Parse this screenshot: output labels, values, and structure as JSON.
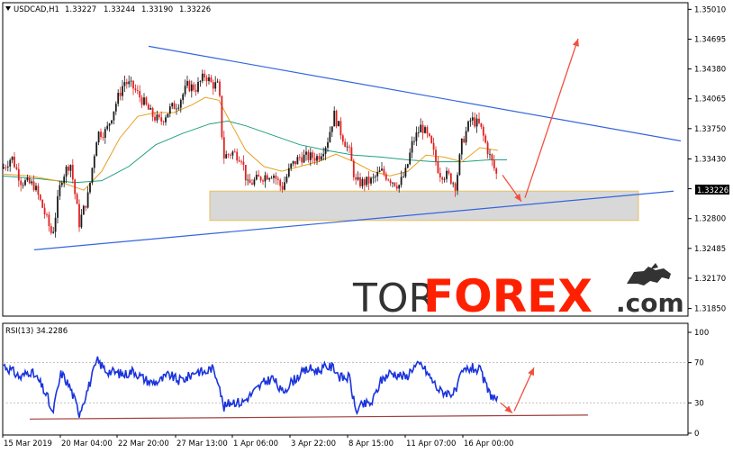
{
  "chart_data": [
    {
      "type": "candlestick",
      "symbol_label": "USDCAD,H1",
      "ohlc_readout": [
        "1.33227",
        "1.33244",
        "1.33190",
        "1.33226"
      ],
      "current_price_label": "1.33226",
      "y_tick_labels": [
        "1.35010",
        "1.34695",
        "1.34380",
        "1.34065",
        "1.33750",
        "1.33430",
        "1.33115",
        "1.32800",
        "1.32485",
        "1.32170",
        "1.31850"
      ],
      "x_tick_labels": [
        "15 Mar 2019",
        "20 Mar 04:00",
        "22 Mar 20:00",
        "27 Mar 13:00",
        "1 Apr 06:00",
        "3 Apr 22:00",
        "8 Apr 15:00",
        "11 Apr 07:00",
        "16 Apr 00:00"
      ],
      "ylim": [
        1.3177,
        1.3508
      ],
      "price_path": [
        [
          0,
          1.3333
        ],
        [
          10,
          1.3345
        ],
        [
          20,
          1.332
        ],
        [
          35,
          1.3315
        ],
        [
          45,
          1.329
        ],
        [
          55,
          1.3262
        ],
        [
          65,
          1.3322
        ],
        [
          75,
          1.334
        ],
        [
          85,
          1.3275
        ],
        [
          95,
          1.3305
        ],
        [
          105,
          1.337
        ],
        [
          115,
          1.3372
        ],
        [
          125,
          1.34
        ],
        [
          135,
          1.3425
        ],
        [
          145,
          1.3418
        ],
        [
          155,
          1.3405
        ],
        [
          165,
          1.339
        ],
        [
          175,
          1.3382
        ],
        [
          185,
          1.3395
        ],
        [
          195,
          1.3402
        ],
        [
          205,
          1.342
        ],
        [
          215,
          1.3418
        ],
        [
          225,
          1.3432
        ],
        [
          232,
          1.3422
        ],
        [
          240,
          1.342
        ],
        [
          245,
          1.3345
        ],
        [
          255,
          1.335
        ],
        [
          265,
          1.3345
        ],
        [
          272,
          1.3315
        ],
        [
          280,
          1.332
        ],
        [
          290,
          1.3325
        ],
        [
          300,
          1.3328
        ],
        [
          310,
          1.3312
        ],
        [
          320,
          1.3335
        ],
        [
          330,
          1.3345
        ],
        [
          340,
          1.3345
        ],
        [
          350,
          1.3345
        ],
        [
          360,
          1.336
        ],
        [
          368,
          1.339
        ],
        [
          375,
          1.3372
        ],
        [
          385,
          1.335
        ],
        [
          392,
          1.3318
        ],
        [
          400,
          1.3318
        ],
        [
          410,
          1.332
        ],
        [
          420,
          1.333
        ],
        [
          430,
          1.3322
        ],
        [
          440,
          1.3315
        ],
        [
          448,
          1.333
        ],
        [
          455,
          1.336
        ],
        [
          465,
          1.3378
        ],
        [
          475,
          1.336
        ],
        [
          485,
          1.3328
        ],
        [
          495,
          1.3325
        ],
        [
          503,
          1.3315
        ],
        [
          510,
          1.336
        ],
        [
          520,
          1.3385
        ],
        [
          530,
          1.3378
        ],
        [
          540,
          1.3348
        ],
        [
          550,
          1.3322
        ]
      ],
      "ma_fast": [
        [
          0,
          1.3327
        ],
        [
          30,
          1.3325
        ],
        [
          60,
          1.332
        ],
        [
          90,
          1.331
        ],
        [
          110,
          1.333
        ],
        [
          130,
          1.3365
        ],
        [
          150,
          1.3388
        ],
        [
          170,
          1.3392
        ],
        [
          190,
          1.3392
        ],
        [
          210,
          1.34
        ],
        [
          225,
          1.3408
        ],
        [
          240,
          1.3405
        ],
        [
          255,
          1.3378
        ],
        [
          270,
          1.3352
        ],
        [
          290,
          1.3335
        ],
        [
          310,
          1.333
        ],
        [
          330,
          1.3335
        ],
        [
          350,
          1.334
        ],
        [
          370,
          1.3348
        ],
        [
          390,
          1.334
        ],
        [
          410,
          1.333
        ],
        [
          430,
          1.3325
        ],
        [
          450,
          1.333
        ],
        [
          470,
          1.3347
        ],
        [
          490,
          1.3345
        ],
        [
          510,
          1.334
        ],
        [
          530,
          1.3355
        ],
        [
          550,
          1.3352
        ]
      ],
      "ma_slow": [
        [
          0,
          1.3325
        ],
        [
          40,
          1.3322
        ],
        [
          80,
          1.3318
        ],
        [
          110,
          1.332
        ],
        [
          140,
          1.3335
        ],
        [
          170,
          1.3358
        ],
        [
          200,
          1.337
        ],
        [
          230,
          1.338
        ],
        [
          250,
          1.3383
        ],
        [
          270,
          1.3378
        ],
        [
          300,
          1.3368
        ],
        [
          330,
          1.3358
        ],
        [
          360,
          1.3352
        ],
        [
          390,
          1.3347
        ],
        [
          420,
          1.3345
        ],
        [
          450,
          1.3342
        ],
        [
          480,
          1.334
        ],
        [
          510,
          1.334
        ],
        [
          540,
          1.3342
        ],
        [
          560,
          1.3342
        ]
      ],
      "trendlines": [
        {
          "from": [
            162,
            1.3462
          ],
          "to": [
            753,
            1.3362
          ]
        },
        {
          "from": [
            35,
            1.3247
          ],
          "to": [
            745,
            1.3309
          ]
        }
      ],
      "support_zone": {
        "x": [
          230,
          706
        ],
        "price": [
          1.3278,
          1.3309
        ]
      },
      "arrows": [
        {
          "from": [
            555,
            1.3326
          ],
          "to": [
            576,
            1.3298
          ]
        },
        {
          "from": [
            580,
            1.3302
          ],
          "to": [
            639,
            1.347
          ]
        }
      ]
    },
    {
      "type": "line",
      "indicator_label": "RSI(13) 34.2286",
      "y_tick_labels": [
        "100",
        "70",
        "30",
        "0"
      ],
      "ylim": [
        0,
        100
      ],
      "rsi_path": [
        [
          0,
          68
        ],
        [
          10,
          62
        ],
        [
          20,
          55
        ],
        [
          30,
          62
        ],
        [
          40,
          52
        ],
        [
          50,
          35
        ],
        [
          55,
          18
        ],
        [
          65,
          60
        ],
        [
          75,
          45
        ],
        [
          85,
          20
        ],
        [
          95,
          45
        ],
        [
          105,
          72
        ],
        [
          115,
          62
        ],
        [
          125,
          60
        ],
        [
          135,
          58
        ],
        [
          145,
          62
        ],
        [
          155,
          55
        ],
        [
          165,
          50
        ],
        [
          175,
          52
        ],
        [
          185,
          58
        ],
        [
          195,
          52
        ],
        [
          205,
          55
        ],
        [
          215,
          62
        ],
        [
          225,
          60
        ],
        [
          232,
          65
        ],
        [
          240,
          52
        ],
        [
          245,
          25
        ],
        [
          255,
          32
        ],
        [
          265,
          30
        ],
        [
          272,
          35
        ],
        [
          280,
          42
        ],
        [
          290,
          50
        ],
        [
          300,
          55
        ],
        [
          310,
          40
        ],
        [
          320,
          50
        ],
        [
          330,
          58
        ],
        [
          340,
          64
        ],
        [
          350,
          62
        ],
        [
          360,
          66
        ],
        [
          368,
          65
        ],
        [
          375,
          55
        ],
        [
          385,
          55
        ],
        [
          392,
          22
        ],
        [
          400,
          28
        ],
        [
          410,
          30
        ],
        [
          420,
          52
        ],
        [
          430,
          60
        ],
        [
          440,
          58
        ],
        [
          448,
          55
        ],
        [
          455,
          65
        ],
        [
          465,
          68
        ],
        [
          475,
          55
        ],
        [
          485,
          42
        ],
        [
          495,
          40
        ],
        [
          503,
          40
        ],
        [
          510,
          60
        ],
        [
          520,
          65
        ],
        [
          530,
          62
        ],
        [
          540,
          40
        ],
        [
          550,
          32
        ]
      ],
      "trendline": {
        "from": [
          30,
          14
        ],
        "to": [
          650,
          18
        ]
      },
      "arrows": [
        {
          "from": [
            553,
            30
          ],
          "to": [
            566,
            20
          ]
        },
        {
          "from": [
            568,
            22
          ],
          "to": [
            590,
            65
          ]
        }
      ]
    }
  ],
  "watermark": {
    "part1": "TOR",
    "part2": "FOREX",
    "part3": ".com"
  },
  "colors": {
    "candle_up": "#1a1a1a",
    "candle_down": "#e02020",
    "ma_fast": "#e8a020",
    "ma_slow": "#20a080",
    "trendline_blue": "#3366dd",
    "rsi_line": "#1a33dd",
    "rsi_trend": "#a04040",
    "arrow_red": "#f05040",
    "zone_fill": "#d8d8d8",
    "zone_border": "#e8c060",
    "watermark_dark": "#333333",
    "watermark_red": "#ff2000",
    "price_box": "#000000"
  }
}
